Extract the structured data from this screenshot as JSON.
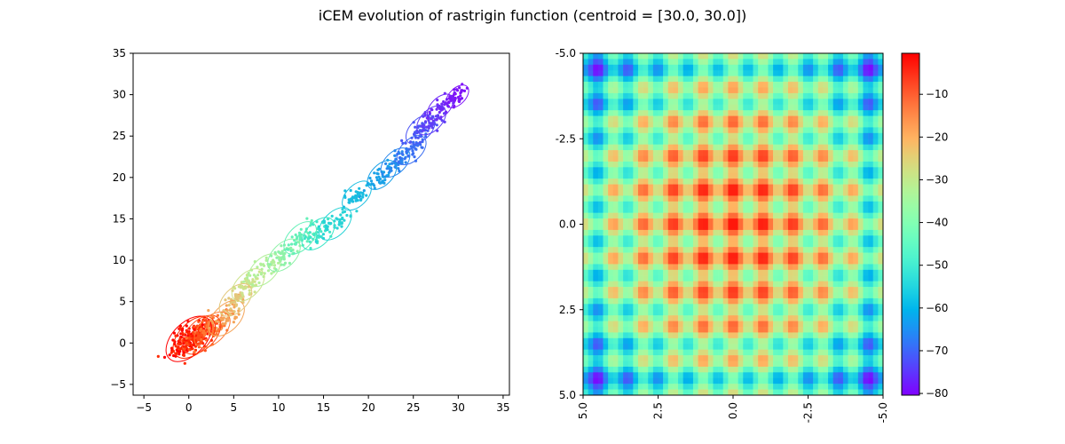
{
  "figure": {
    "title": "iCEM evolution of rastrigin function (centroid = [30.0, 30.0])"
  },
  "chart_data": [
    {
      "type": "scatter",
      "title": "",
      "xlabel": "",
      "ylabel": "",
      "xlim": [
        -6.2,
        35.7
      ],
      "ylim": [
        -6.3,
        35.0
      ],
      "xticks": [
        -5,
        0,
        5,
        10,
        15,
        20,
        25,
        30,
        35
      ],
      "yticks": [
        -5,
        0,
        5,
        10,
        15,
        20,
        25,
        30,
        35
      ],
      "grid": false,
      "colormap": "rainbow (red = early/near origin, violet = late/near centroid)",
      "centroid": [
        30.0,
        30.0
      ],
      "iterations": [
        {
          "mean": [
            0.0,
            0.5
          ],
          "spread": 1.4,
          "count": 120,
          "color": "#ff0000"
        },
        {
          "mean": [
            0.6,
            0.7
          ],
          "spread": 1.3,
          "count": 80,
          "color": "#ff2a00"
        },
        {
          "mean": [
            1.4,
            1.0
          ],
          "spread": 1.2,
          "count": 70,
          "color": "#ff4d1a"
        },
        {
          "mean": [
            2.6,
            1.6
          ],
          "spread": 1.1,
          "count": 55,
          "color": "#ff7733"
        },
        {
          "mean": [
            4.2,
            3.0
          ],
          "spread": 1.1,
          "count": 45,
          "color": "#f4a55a"
        },
        {
          "mean": [
            5.2,
            5.2
          ],
          "spread": 1.0,
          "count": 45,
          "color": "#e3c77a"
        },
        {
          "mean": [
            6.6,
            7.0
          ],
          "spread": 1.0,
          "count": 40,
          "color": "#cde38c"
        },
        {
          "mean": [
            8.4,
            8.8
          ],
          "spread": 1.0,
          "count": 40,
          "color": "#b2f09a"
        },
        {
          "mean": [
            10.6,
            10.6
          ],
          "spread": 1.0,
          "count": 40,
          "color": "#8ef2a8"
        },
        {
          "mean": [
            12.4,
            12.7
          ],
          "spread": 1.0,
          "count": 40,
          "color": "#64f0b8"
        },
        {
          "mean": [
            14.4,
            13.2
          ],
          "spread": 1.0,
          "count": 40,
          "color": "#40e6c8"
        },
        {
          "mean": [
            16.3,
            14.4
          ],
          "spread": 1.0,
          "count": 40,
          "color": "#27d3d6"
        },
        {
          "mean": [
            18.7,
            17.8
          ],
          "spread": 0.9,
          "count": 40,
          "color": "#19bde0"
        },
        {
          "mean": [
            21.5,
            20.3
          ],
          "spread": 0.9,
          "count": 40,
          "color": "#1aa2e8"
        },
        {
          "mean": [
            23.0,
            21.8
          ],
          "spread": 0.9,
          "count": 40,
          "color": "#2887ee"
        },
        {
          "mean": [
            24.8,
            23.3
          ],
          "spread": 0.9,
          "count": 40,
          "color": "#3a6ef2"
        },
        {
          "mean": [
            25.8,
            25.8
          ],
          "spread": 0.9,
          "count": 40,
          "color": "#4d55f5"
        },
        {
          "mean": [
            27.0,
            26.9
          ],
          "spread": 0.9,
          "count": 40,
          "color": "#603ff6"
        },
        {
          "mean": [
            28.0,
            28.5
          ],
          "spread": 0.8,
          "count": 40,
          "color": "#712af7"
        },
        {
          "mean": [
            29.9,
            29.8
          ],
          "spread": 0.7,
          "count": 40,
          "color": "#7f14f8"
        }
      ]
    },
    {
      "type": "heatmap",
      "title": "",
      "function": "negative rastrigin: -(20 + x^2 - 10cos(2*pi*x) + y^2 - 10cos(2*pi*y))",
      "x_range": [
        -5.0,
        5.0
      ],
      "y_range": [
        -5.0,
        5.0
      ],
      "xticks": [
        "5.0",
        "2.5",
        "0.0",
        "-2.5",
        "-5.0"
      ],
      "yticks": [
        "-5.0",
        "-2.5",
        "0.0",
        "2.5",
        "5.0"
      ],
      "colormap": "rainbow",
      "vmin": -80.4,
      "vmax": -0.4,
      "colorbar_ticks": [
        "-10",
        "-20",
        "-30",
        "-40",
        "-50",
        "-60",
        "-70",
        "-80"
      ]
    }
  ]
}
